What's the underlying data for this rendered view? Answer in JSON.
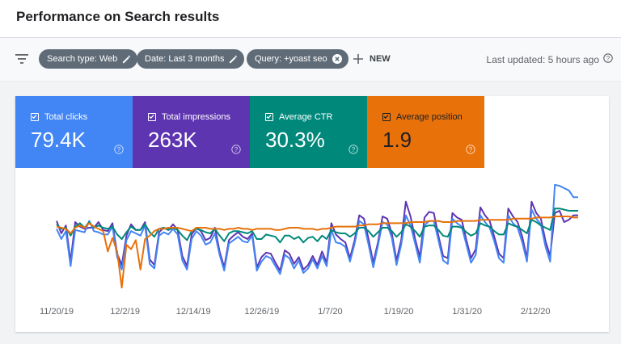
{
  "header": {
    "title": "Performance on Search results"
  },
  "filters": {
    "chips": [
      {
        "label": "Search type: Web",
        "icon": "edit-icon"
      },
      {
        "label": "Date: Last 3 months",
        "icon": "edit-icon"
      },
      {
        "label": "Query: +yoast seo",
        "icon": "close-circle-icon"
      }
    ],
    "new_label": "NEW",
    "last_updated": "Last updated: 5 hours ago"
  },
  "metrics": [
    {
      "label": "Total clicks",
      "value": "79.4K",
      "color": "#4285f4",
      "checked": true
    },
    {
      "label": "Total impressions",
      "value": "263K",
      "color": "#5e35b1",
      "checked": true
    },
    {
      "label": "Average CTR",
      "value": "30.3%",
      "color": "#00897b",
      "checked": true
    },
    {
      "label": "Average position",
      "value": "1.9",
      "color": "#e8710a",
      "checked": true
    }
  ],
  "chart_data": {
    "type": "line",
    "x_tick_labels": [
      "11/20/19",
      "12/2/19",
      "12/14/19",
      "12/26/19",
      "1/7/20",
      "1/19/20",
      "1/31/20",
      "2/12/20"
    ],
    "grid": false,
    "y_axis_labels_visible": false,
    "y_scale": "normalized 0-1 per series (relative level, axis not printed)",
    "series": [
      {
        "name": "Total impressions",
        "color": "#5e35b1",
        "values": [
          0.61,
          0.5,
          0.57,
          0.25,
          0.6,
          0.56,
          0.54,
          0.55,
          0.55,
          0.6,
          0.53,
          0.52,
          0.59,
          0.32,
          0.22,
          0.48,
          0.58,
          0.53,
          0.53,
          0.6,
          0.27,
          0.22,
          0.51,
          0.55,
          0.53,
          0.58,
          0.53,
          0.3,
          0.21,
          0.49,
          0.55,
          0.52,
          0.44,
          0.46,
          0.55,
          0.34,
          0.2,
          0.44,
          0.48,
          0.51,
          0.47,
          0.45,
          0.5,
          0.2,
          0.29,
          0.33,
          0.32,
          0.24,
          0.17,
          0.35,
          0.32,
          0.23,
          0.29,
          0.18,
          0.22,
          0.3,
          0.22,
          0.34,
          0.24,
          0.59,
          0.49,
          0.45,
          0.42,
          0.28,
          0.44,
          0.66,
          0.63,
          0.45,
          0.24,
          0.42,
          0.65,
          0.63,
          0.5,
          0.26,
          0.44,
          0.78,
          0.65,
          0.45,
          0.29,
          0.64,
          0.69,
          0.68,
          0.48,
          0.3,
          0.28,
          0.68,
          0.64,
          0.62,
          0.44,
          0.28,
          0.36,
          0.73,
          0.66,
          0.61,
          0.47,
          0.32,
          0.28,
          0.72,
          0.65,
          0.6,
          0.47,
          0.28,
          0.78,
          0.68,
          0.63,
          0.43,
          0.3,
          0.68,
          0.7,
          0.6,
          0.62,
          0.66,
          0.66
        ]
      },
      {
        "name": "Total clicks",
        "color": "#4285f4",
        "values": [
          0.54,
          0.45,
          0.52,
          0.21,
          0.53,
          0.52,
          0.51,
          0.61,
          0.52,
          0.51,
          0.49,
          0.49,
          0.56,
          0.29,
          0.18,
          0.44,
          0.52,
          0.5,
          0.48,
          0.57,
          0.23,
          0.19,
          0.48,
          0.51,
          0.49,
          0.54,
          0.49,
          0.26,
          0.18,
          0.45,
          0.52,
          0.48,
          0.4,
          0.42,
          0.5,
          0.31,
          0.17,
          0.41,
          0.44,
          0.47,
          0.43,
          0.42,
          0.48,
          0.17,
          0.25,
          0.3,
          0.28,
          0.21,
          0.14,
          0.31,
          0.28,
          0.19,
          0.26,
          0.15,
          0.19,
          0.27,
          0.19,
          0.3,
          0.21,
          0.53,
          0.42,
          0.41,
          0.38,
          0.25,
          0.41,
          0.61,
          0.58,
          0.4,
          0.2,
          0.39,
          0.6,
          0.58,
          0.46,
          0.22,
          0.4,
          0.66,
          0.57,
          0.41,
          0.24,
          0.57,
          0.61,
          0.61,
          0.44,
          0.26,
          0.23,
          0.63,
          0.59,
          0.56,
          0.4,
          0.24,
          0.31,
          0.66,
          0.6,
          0.55,
          0.43,
          0.28,
          0.24,
          0.66,
          0.59,
          0.55,
          0.42,
          0.25,
          0.71,
          0.63,
          0.58,
          0.38,
          0.25,
          0.93,
          0.92,
          0.9,
          0.88,
          0.82,
          0.82
        ]
      },
      {
        "name": "Average CTR",
        "color": "#00897b",
        "values": [
          0.58,
          0.54,
          0.55,
          0.48,
          0.56,
          0.59,
          0.55,
          0.6,
          0.55,
          0.57,
          0.55,
          0.54,
          0.56,
          0.49,
          0.45,
          0.51,
          0.56,
          0.53,
          0.53,
          0.58,
          0.51,
          0.47,
          0.54,
          0.55,
          0.53,
          0.55,
          0.53,
          0.48,
          0.44,
          0.52,
          0.54,
          0.53,
          0.51,
          0.5,
          0.54,
          0.48,
          0.43,
          0.5,
          0.52,
          0.52,
          0.51,
          0.5,
          0.52,
          0.45,
          0.45,
          0.49,
          0.48,
          0.47,
          0.42,
          0.48,
          0.48,
          0.45,
          0.47,
          0.42,
          0.46,
          0.47,
          0.43,
          0.48,
          0.45,
          0.53,
          0.51,
          0.5,
          0.5,
          0.47,
          0.5,
          0.55,
          0.55,
          0.52,
          0.47,
          0.51,
          0.55,
          0.55,
          0.52,
          0.47,
          0.51,
          0.58,
          0.56,
          0.52,
          0.47,
          0.56,
          0.57,
          0.57,
          0.53,
          0.48,
          0.47,
          0.56,
          0.56,
          0.55,
          0.51,
          0.48,
          0.5,
          0.59,
          0.57,
          0.56,
          0.52,
          0.49,
          0.49,
          0.59,
          0.57,
          0.56,
          0.53,
          0.5,
          0.62,
          0.6,
          0.57,
          0.55,
          0.53,
          0.72,
          0.72,
          0.71,
          0.7,
          0.7,
          0.7
        ]
      },
      {
        "name": "Average position",
        "color": "#e8710a",
        "values": [
          0.56,
          0.55,
          0.54,
          0.5,
          0.55,
          0.57,
          0.55,
          0.59,
          0.56,
          0.54,
          0.52,
          0.34,
          0.46,
          0.34,
          0.02,
          0.4,
          0.36,
          0.44,
          0.18,
          0.45,
          0.48,
          0.52,
          0.54,
          0.54,
          0.55,
          0.55,
          0.55,
          0.54,
          0.53,
          0.52,
          0.55,
          0.55,
          0.55,
          0.54,
          0.54,
          0.54,
          0.53,
          0.54,
          0.54,
          0.55,
          0.54,
          0.54,
          0.53,
          0.54,
          0.54,
          0.54,
          0.54,
          0.53,
          0.53,
          0.54,
          0.55,
          0.55,
          0.55,
          0.54,
          0.54,
          0.54,
          0.53,
          0.54,
          0.54,
          0.55,
          0.56,
          0.56,
          0.56,
          0.56,
          0.56,
          0.57,
          0.57,
          0.58,
          0.58,
          0.58,
          0.59,
          0.59,
          0.59,
          0.59,
          0.59,
          0.59,
          0.6,
          0.6,
          0.6,
          0.6,
          0.61,
          0.61,
          0.61,
          0.6,
          0.6,
          0.6,
          0.61,
          0.61,
          0.61,
          0.61,
          0.61,
          0.62,
          0.62,
          0.62,
          0.62,
          0.62,
          0.62,
          0.62,
          0.63,
          0.63,
          0.63,
          0.63,
          0.63,
          0.64,
          0.64,
          0.64,
          0.64,
          0.65,
          0.65,
          0.65,
          0.65,
          0.64,
          0.64
        ]
      }
    ]
  }
}
